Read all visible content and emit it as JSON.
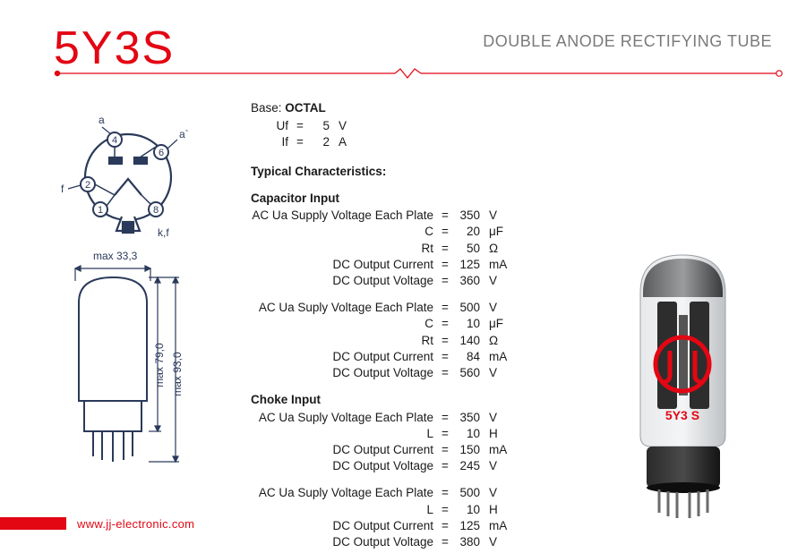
{
  "colors": {
    "red": "#e30613",
    "grey": "#7a7a7a",
    "text": "#1a1a1a",
    "blueprint": "#2b3a5a",
    "tube_black": "#1b1b1b",
    "tube_glass": "#cfd1d3"
  },
  "header": {
    "product": "5Y3S",
    "subtitle": "DOUBLE ANODE RECTIFYING TUBE"
  },
  "base": {
    "label": "Base:",
    "value": "OCTAL",
    "rows": [
      {
        "lbl": "Uf",
        "val": "5",
        "unit": "V"
      },
      {
        "lbl": "If",
        "val": "2",
        "unit": "A"
      }
    ]
  },
  "typChar": "Typical Characteristics:",
  "capInput": {
    "heading": "Capacitor Input",
    "block1": [
      {
        "lbl": "AC Ua Supply Voltage Each Plate",
        "val": "350",
        "unit": "V"
      },
      {
        "lbl": "C",
        "val": "20",
        "unit": "μF"
      },
      {
        "lbl": "Rt",
        "val": "50",
        "unit": "Ω"
      },
      {
        "lbl": "DC Output Current",
        "val": "125",
        "unit": "mA"
      },
      {
        "lbl": "DC Output Voltage",
        "val": "360",
        "unit": "V"
      }
    ],
    "block2": [
      {
        "lbl": "AC Ua Suply Voltage Each Plate",
        "val": "500",
        "unit": "V"
      },
      {
        "lbl": "C",
        "val": "10",
        "unit": "μF"
      },
      {
        "lbl": "Rt",
        "val": "140",
        "unit": "Ω"
      },
      {
        "lbl": "DC Output Current",
        "val": "84",
        "unit": "mA"
      },
      {
        "lbl": "DC Output Voltage",
        "val": "560",
        "unit": "V"
      }
    ]
  },
  "chokeInput": {
    "heading": "Choke Input",
    "block1": [
      {
        "lbl": "AC Ua Suply Voltage Each Plate",
        "val": "350",
        "unit": "V"
      },
      {
        "lbl": "L",
        "val": "10",
        "unit": "H"
      },
      {
        "lbl": "DC Output Current",
        "val": "150",
        "unit": "mA"
      },
      {
        "lbl": "DC Output Voltage",
        "val": "245",
        "unit": "V"
      }
    ],
    "block2": [
      {
        "lbl": "AC Ua Suply Voltage Each Plate",
        "val": "500",
        "unit": "V"
      },
      {
        "lbl": "L",
        "val": "10",
        "unit": "H"
      },
      {
        "lbl": "DC Output Current",
        "val": "125",
        "unit": "mA"
      },
      {
        "lbl": "DC Output Voltage",
        "val": "380",
        "unit": "V"
      }
    ]
  },
  "diagram": {
    "width_label": "max 33,3",
    "height1": "max 79,0",
    "height2": "max 93,0",
    "pins": {
      "p1": "1",
      "p2": "2",
      "p4": "4",
      "p6": "6",
      "p8": "8",
      "a": "a",
      "a2": "a`",
      "f": "f",
      "kf": "k,f"
    }
  },
  "photo": {
    "marking": "5Y3 S"
  },
  "footer": {
    "url": "www.jj-electronic.com"
  }
}
